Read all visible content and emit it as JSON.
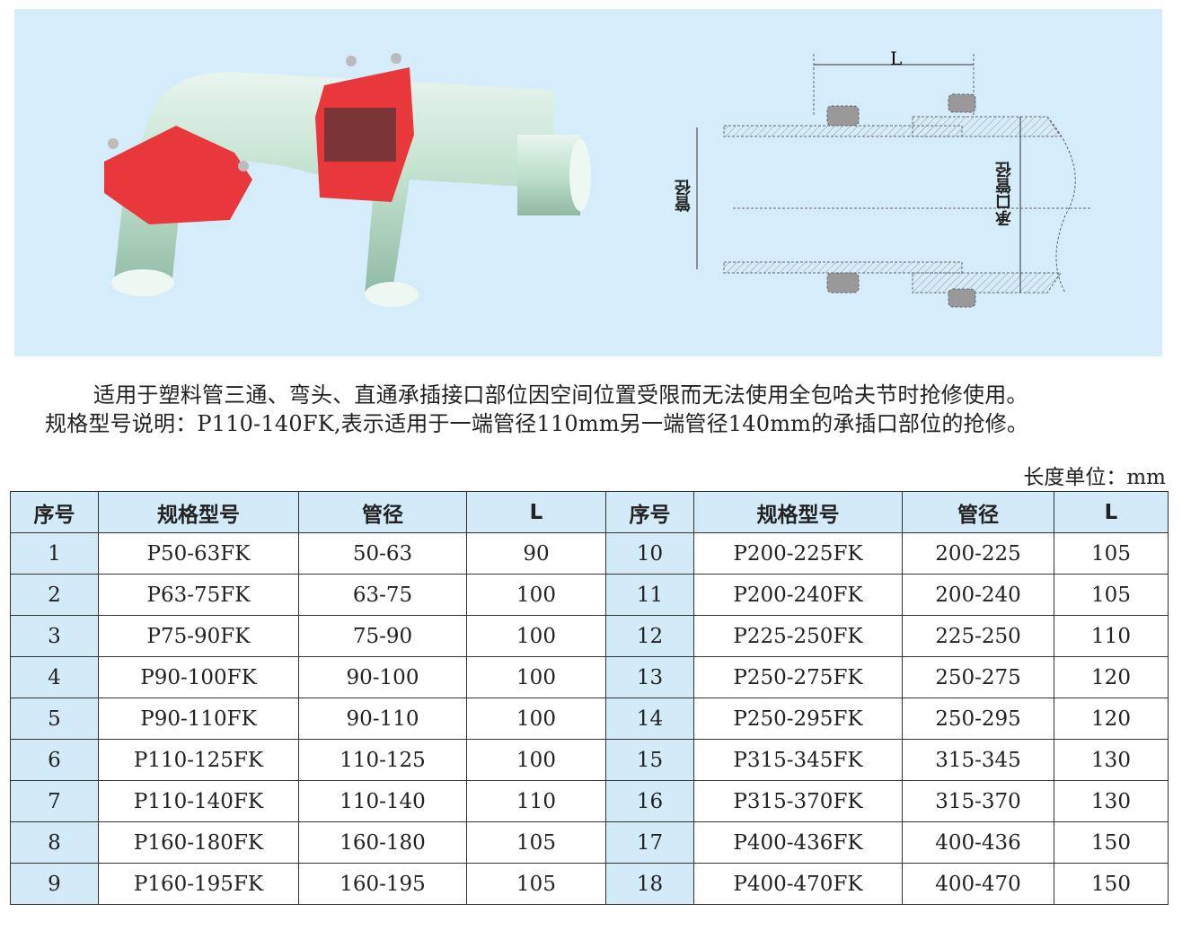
{
  "diagram": {
    "dim_L": "L",
    "label_pipe_diameter": "管径",
    "label_socket_diameter": "承口管径",
    "colors": {
      "background": "#d5ecfa",
      "clamp": "#e8383b",
      "pipe": "#c9e6d6"
    }
  },
  "description": {
    "line1": "适用于塑料管三通、弯头、直通承插接口部位因空间位置受限而无法使用全包哈夫节时抢修使用。",
    "line2": "规格型号说明：P110-140FK,表示适用于一端管径110mm另一端管径140mm的承插口部位的抢修。"
  },
  "unit_note": "长度单位：mm",
  "table": {
    "headers": [
      "序号",
      "规格型号",
      "管径",
      "L",
      "序号",
      "规格型号",
      "管径",
      "L"
    ],
    "rows": [
      [
        "1",
        "P50-63FK",
        "50-63",
        "90",
        "10",
        "P200-225FK",
        "200-225",
        "105"
      ],
      [
        "2",
        "P63-75FK",
        "63-75",
        "100",
        "11",
        "P200-240FK",
        "200-240",
        "105"
      ],
      [
        "3",
        "P75-90FK",
        "75-90",
        "100",
        "12",
        "P225-250FK",
        "225-250",
        "110"
      ],
      [
        "4",
        "P90-100FK",
        "90-100",
        "100",
        "13",
        "P250-275FK",
        "250-275",
        "120"
      ],
      [
        "5",
        "P90-110FK",
        "90-110",
        "100",
        "14",
        "P250-295FK",
        "250-295",
        "120"
      ],
      [
        "6",
        "P110-125FK",
        "110-125",
        "100",
        "15",
        "P315-345FK",
        "315-345",
        "130"
      ],
      [
        "7",
        "P110-140FK",
        "110-140",
        "110",
        "16",
        "P315-370FK",
        "315-370",
        "130"
      ],
      [
        "8",
        "P160-180FK",
        "160-180",
        "105",
        "17",
        "P400-436FK",
        "400-436",
        "150"
      ],
      [
        "9",
        "P160-195FK",
        "160-195",
        "105",
        "18",
        "P400-470FK",
        "400-470",
        "150"
      ]
    ]
  }
}
